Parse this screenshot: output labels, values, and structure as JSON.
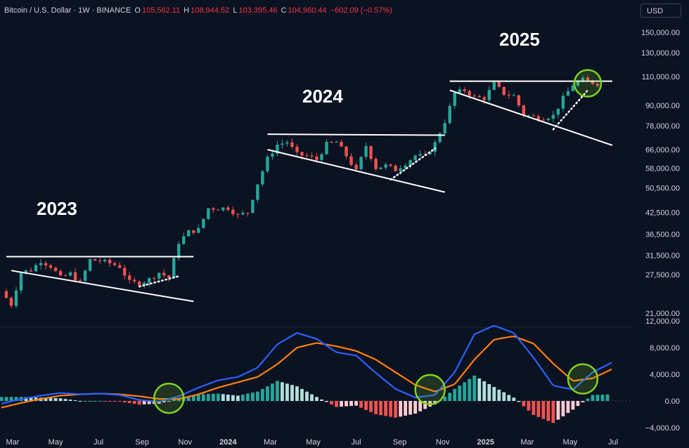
{
  "header": {
    "symbol": "Bitcoin / U.S. Dollar · 1W · BINANCE",
    "open_label": "O",
    "open": "105,562.11",
    "high_label": "H",
    "high": "108,944.52",
    "low_label": "L",
    "low": "103,395.46",
    "close_label": "C",
    "close": "104,960.44",
    "change": "−602.09 (−0.57%)"
  },
  "currency_button": "USD",
  "colors": {
    "up": "#26a69a",
    "down": "#ef5350",
    "macd": "#2962ff",
    "signal": "#ff7f0e",
    "trend": "#ffffff",
    "circle": "#7ed321",
    "hist_pos_strong": "#26a69a",
    "hist_pos_weak": "#b2dfdb",
    "hist_neg_strong": "#ef5350",
    "hist_neg_weak": "#ffcdd2"
  },
  "chart_data": {
    "type": "candlestick",
    "price_scale": "log",
    "price_ticks": [
      "150,000.00",
      "130,000.00",
      "110,000.00",
      "90,000.00",
      "78,000.00",
      "66,000.00",
      "58,000.00",
      "50,500.00",
      "42,500.00",
      "36,500.00",
      "31,500.00",
      "27,500.00",
      "21,000.00"
    ],
    "price_tick_values": [
      150000,
      130000,
      110000,
      90000,
      78000,
      66000,
      58000,
      50500,
      42500,
      36500,
      31500,
      27500,
      21000
    ],
    "indicator_ticks": [
      "12,000.00",
      "8,000.00",
      "4,000.00",
      "0.00",
      "−4,000.00"
    ],
    "indicator_tick_values": [
      12000,
      8000,
      4000,
      0,
      -4000
    ],
    "x_ticks": [
      {
        "label": "Mar",
        "date": "2023-03-01"
      },
      {
        "label": "May",
        "date": "2023-05-01"
      },
      {
        "label": "Jul",
        "date": "2023-07-01"
      },
      {
        "label": "Sep",
        "date": "2023-09-01"
      },
      {
        "label": "Nov",
        "date": "2023-11-01"
      },
      {
        "label": "2024",
        "date": "2024-01-01",
        "bold": true
      },
      {
        "label": "Mar",
        "date": "2024-03-01"
      },
      {
        "label": "May",
        "date": "2024-05-01"
      },
      {
        "label": "Jul",
        "date": "2024-07-01"
      },
      {
        "label": "Sep",
        "date": "2024-09-01"
      },
      {
        "label": "Nov",
        "date": "2024-11-01"
      },
      {
        "label": "2025",
        "date": "2025-01-01",
        "bold": true
      },
      {
        "label": "Mar",
        "date": "2025-03-01"
      },
      {
        "label": "May",
        "date": "2025-05-01"
      },
      {
        "label": "Jul",
        "date": "2025-07-01"
      }
    ],
    "annotations": [
      "2023",
      "2024",
      "2025"
    ],
    "close_path": [
      [
        "2023-02-13",
        24500
      ],
      [
        "2023-02-27",
        22300
      ],
      [
        "2023-03-13",
        28000
      ],
      [
        "2023-03-27",
        28400
      ],
      [
        "2023-04-10",
        30300
      ],
      [
        "2023-04-24",
        29200
      ],
      [
        "2023-05-08",
        26900
      ],
      [
        "2023-05-22",
        27700
      ],
      [
        "2023-06-05",
        26000
      ],
      [
        "2023-06-19",
        30500
      ],
      [
        "2023-07-03",
        30300
      ],
      [
        "2023-07-17",
        29800
      ],
      [
        "2023-07-31",
        29100
      ],
      [
        "2023-08-14",
        26100
      ],
      [
        "2023-08-28",
        25900
      ],
      [
        "2023-09-11",
        26600
      ],
      [
        "2023-09-25",
        27900
      ],
      [
        "2023-10-09",
        26900
      ],
      [
        "2023-10-23",
        34500
      ],
      [
        "2023-11-06",
        37100
      ],
      [
        "2023-11-20",
        37700
      ],
      [
        "2023-12-04",
        43800
      ],
      [
        "2023-12-18",
        43700
      ],
      [
        "2024-01-01",
        43900
      ],
      [
        "2024-01-15",
        41600
      ],
      [
        "2024-01-29",
        42600
      ],
      [
        "2024-02-12",
        52100
      ],
      [
        "2024-02-26",
        61900
      ],
      [
        "2024-03-11",
        68300
      ],
      [
        "2024-03-25",
        69600
      ],
      [
        "2024-04-08",
        63800
      ],
      [
        "2024-04-22",
        63100
      ],
      [
        "2024-05-06",
        61500
      ],
      [
        "2024-05-20",
        68500
      ],
      [
        "2024-06-03",
        69600
      ],
      [
        "2024-06-17",
        63200
      ],
      [
        "2024-07-01",
        56700
      ],
      [
        "2024-07-15",
        67800
      ],
      [
        "2024-07-29",
        58100
      ],
      [
        "2024-08-12",
        59000
      ],
      [
        "2024-08-26",
        57300
      ],
      [
        "2024-09-09",
        60000
      ],
      [
        "2024-09-23",
        63300
      ],
      [
        "2024-10-07",
        62900
      ],
      [
        "2024-10-21",
        69000
      ],
      [
        "2024-11-04",
        80400
      ],
      [
        "2024-11-18",
        98000
      ],
      [
        "2024-12-02",
        100000
      ],
      [
        "2024-12-16",
        95200
      ],
      [
        "2024-12-30",
        94500
      ],
      [
        "2025-01-13",
        104500
      ],
      [
        "2025-01-27",
        97700
      ],
      [
        "2025-02-10",
        96100
      ],
      [
        "2025-02-24",
        84300
      ],
      [
        "2025-03-10",
        82900
      ],
      [
        "2025-03-24",
        82600
      ],
      [
        "2025-04-07",
        83700
      ],
      [
        "2025-04-21",
        94500
      ],
      [
        "2025-05-05",
        104000
      ],
      [
        "2025-05-19",
        107500
      ],
      [
        "2025-06-02",
        105500
      ],
      [
        "2025-06-09",
        104960
      ]
    ],
    "trendlines_price": [
      {
        "name": "resistance-2023",
        "points": [
          [
            "2023-02-20",
            31200
          ],
          [
            "2023-11-13",
            31200
          ]
        ]
      },
      {
        "name": "support-2023",
        "points": [
          [
            "2023-02-27",
            28300
          ],
          [
            "2023-11-13",
            22800
          ]
        ]
      },
      {
        "name": "resistance-2024",
        "points": [
          [
            "2024-02-26",
            73500
          ],
          [
            "2024-11-04",
            73000
          ]
        ]
      },
      {
        "name": "support-2024",
        "points": [
          [
            "2024-02-26",
            66000
          ],
          [
            "2024-11-04",
            49000
          ]
        ]
      },
      {
        "name": "resistance-2025",
        "points": [
          [
            "2024-11-11",
            106500
          ],
          [
            "2025-06-30",
            106500
          ]
        ]
      },
      {
        "name": "support-2025",
        "points": [
          [
            "2024-11-11",
            100000
          ],
          [
            "2025-06-30",
            68000
          ]
        ]
      }
    ],
    "dotted_lines_price": [
      {
        "points": [
          [
            "2023-08-28",
            25300
          ],
          [
            "2023-10-23",
            27200
          ]
        ]
      },
      {
        "points": [
          [
            "2024-08-19",
            53500
          ],
          [
            "2024-10-21",
            66500
          ]
        ]
      },
      {
        "points": [
          [
            "2025-04-07",
            76000
          ],
          [
            "2025-05-26",
            100000
          ]
        ]
      }
    ],
    "circles_price": [
      {
        "date": "2025-05-26",
        "price": 105000
      }
    ],
    "macd": [
      [
        "2023-02-13",
        -400
      ],
      [
        "2023-03-13",
        300
      ],
      [
        "2023-04-10",
        800
      ],
      [
        "2023-05-08",
        1200
      ],
      [
        "2023-06-05",
        1000
      ],
      [
        "2023-07-03",
        1100
      ],
      [
        "2023-07-31",
        900
      ],
      [
        "2023-08-28",
        150
      ],
      [
        "2023-09-25",
        -100
      ],
      [
        "2023-10-23",
        700
      ],
      [
        "2023-11-20",
        2000
      ],
      [
        "2023-12-18",
        3100
      ],
      [
        "2024-01-15",
        3600
      ],
      [
        "2024-02-12",
        5000
      ],
      [
        "2024-03-11",
        8500
      ],
      [
        "2024-04-08",
        10200
      ],
      [
        "2024-05-06",
        9300
      ],
      [
        "2024-06-03",
        7300
      ],
      [
        "2024-07-01",
        6800
      ],
      [
        "2024-07-29",
        4200
      ],
      [
        "2024-08-26",
        1800
      ],
      [
        "2024-09-23",
        500
      ],
      [
        "2024-10-21",
        900
      ],
      [
        "2024-11-18",
        4300
      ],
      [
        "2024-12-16",
        10000
      ],
      [
        "2025-01-13",
        11300
      ],
      [
        "2025-02-10",
        10200
      ],
      [
        "2025-03-10",
        6500
      ],
      [
        "2025-04-07",
        2300
      ],
      [
        "2025-05-05",
        1700
      ],
      [
        "2025-06-02",
        4300
      ],
      [
        "2025-06-30",
        5800
      ]
    ],
    "signal": [
      [
        "2023-02-13",
        -1000
      ],
      [
        "2023-03-13",
        -300
      ],
      [
        "2023-04-10",
        300
      ],
      [
        "2023-05-08",
        800
      ],
      [
        "2023-06-05",
        1000
      ],
      [
        "2023-07-03",
        1100
      ],
      [
        "2023-07-31",
        1000
      ],
      [
        "2023-08-28",
        700
      ],
      [
        "2023-09-25",
        300
      ],
      [
        "2023-10-23",
        300
      ],
      [
        "2023-11-20",
        1000
      ],
      [
        "2023-12-18",
        2000
      ],
      [
        "2024-01-15",
        2800
      ],
      [
        "2024-02-12",
        3600
      ],
      [
        "2024-03-11",
        5500
      ],
      [
        "2024-04-08",
        8000
      ],
      [
        "2024-05-06",
        8700
      ],
      [
        "2024-06-03",
        8200
      ],
      [
        "2024-07-01",
        7500
      ],
      [
        "2024-07-29",
        6200
      ],
      [
        "2024-08-26",
        4300
      ],
      [
        "2024-09-23",
        2400
      ],
      [
        "2024-10-21",
        1400
      ],
      [
        "2024-11-18",
        2500
      ],
      [
        "2024-12-16",
        6200
      ],
      [
        "2025-01-13",
        9200
      ],
      [
        "2025-02-10",
        9700
      ],
      [
        "2025-03-10",
        8600
      ],
      [
        "2025-04-07",
        5600
      ],
      [
        "2025-05-05",
        3000
      ],
      [
        "2025-06-02",
        3400
      ],
      [
        "2025-06-30",
        4800
      ]
    ],
    "circles_indicator": [
      {
        "date": "2023-10-09",
        "value": 400
      },
      {
        "date": "2024-10-14",
        "value": 1700
      },
      {
        "date": "2025-05-19",
        "value": 3300
      }
    ]
  }
}
